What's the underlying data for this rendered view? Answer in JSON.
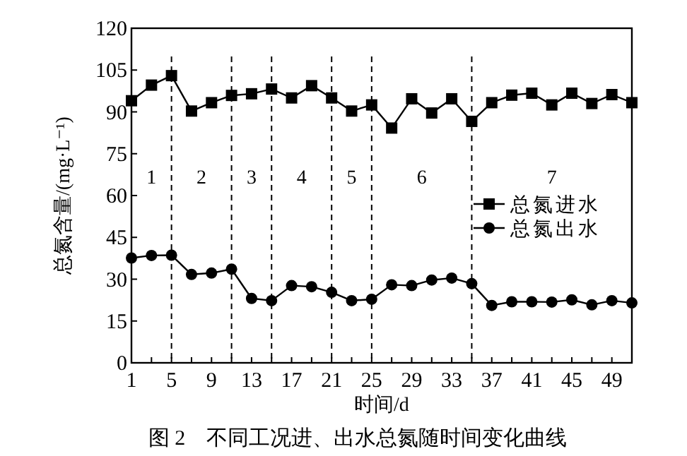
{
  "chart_data": {
    "type": "line",
    "xlabel": "时间/d",
    "ylabel": "总氮含量/(mg·L⁻¹)",
    "x": [
      1,
      3,
      5,
      7,
      9,
      11,
      13,
      15,
      17,
      19,
      21,
      23,
      25,
      27,
      29,
      31,
      33,
      35,
      37,
      39,
      41,
      43,
      45,
      47,
      49,
      51
    ],
    "xlim": [
      1,
      51
    ],
    "ylim": [
      0,
      120
    ],
    "xticks": [
      1,
      {
        "value": 3,
        "label": null
      },
      5,
      {
        "value": 7,
        "label": null
      },
      9,
      {
        "value": 11,
        "label": null
      },
      13,
      {
        "value": 15,
        "label": null
      },
      17,
      {
        "value": 19,
        "label": null
      },
      21,
      {
        "value": 23,
        "label": null
      },
      25,
      {
        "value": 27,
        "label": null
      },
      29,
      {
        "value": 31,
        "label": null
      },
      33,
      {
        "value": 35,
        "label": null
      },
      37,
      {
        "value": 39,
        "label": null
      },
      41,
      {
        "value": 43,
        "label": null
      },
      45,
      {
        "value": 47,
        "label": null
      },
      49
    ],
    "yticks": [
      0,
      15,
      30,
      45,
      60,
      75,
      90,
      105,
      120
    ],
    "legend": "right",
    "line_style": "solid",
    "series": [
      {
        "name": "总氮进水",
        "color": "#000000",
        "marker": "square",
        "values": [
          94.0,
          99.6,
          103,
          90.3,
          93.3,
          95.9,
          96.5,
          98.2,
          95,
          99.4,
          95,
          90.3,
          92.5,
          84.2,
          94.7,
          89.6,
          94.7,
          86.6,
          93.3,
          96,
          96.7,
          92.5,
          96.7,
          93,
          96.2,
          93.3
        ]
      },
      {
        "name": "总氮出水",
        "color": "#000000",
        "marker": "circle",
        "values": [
          37.6,
          38.5,
          38.6,
          31.7,
          32.2,
          33.6,
          23.1,
          22.3,
          27.7,
          27.3,
          25.3,
          22.3,
          22.8,
          28,
          27.7,
          29.7,
          30.4,
          28.4,
          20.6,
          21.9,
          21.9,
          21.8,
          22.6,
          20.8,
          22.3,
          21.5
        ]
      }
    ],
    "ref_lines": [
      {
        "axis": "x",
        "value": 5,
        "line_style": "dashed",
        "color": "#000000"
      },
      {
        "axis": "x",
        "value": 11,
        "line_style": "dashed",
        "color": "#000000"
      },
      {
        "axis": "x",
        "value": 15,
        "line_style": "dashed",
        "color": "#000000"
      },
      {
        "axis": "x",
        "value": 21,
        "line_style": "dashed",
        "color": "#000000"
      },
      {
        "axis": "x",
        "value": 25,
        "line_style": "dashed",
        "color": "#000000"
      },
      {
        "axis": "x",
        "value": 35,
        "line_style": "dashed",
        "color": "#000000"
      }
    ],
    "annotations": [
      "1",
      "2",
      "3",
      "4",
      "5",
      "6",
      "7",
      "图 2　不同工况进、出水总氮随时间变化曲线"
    ]
  }
}
